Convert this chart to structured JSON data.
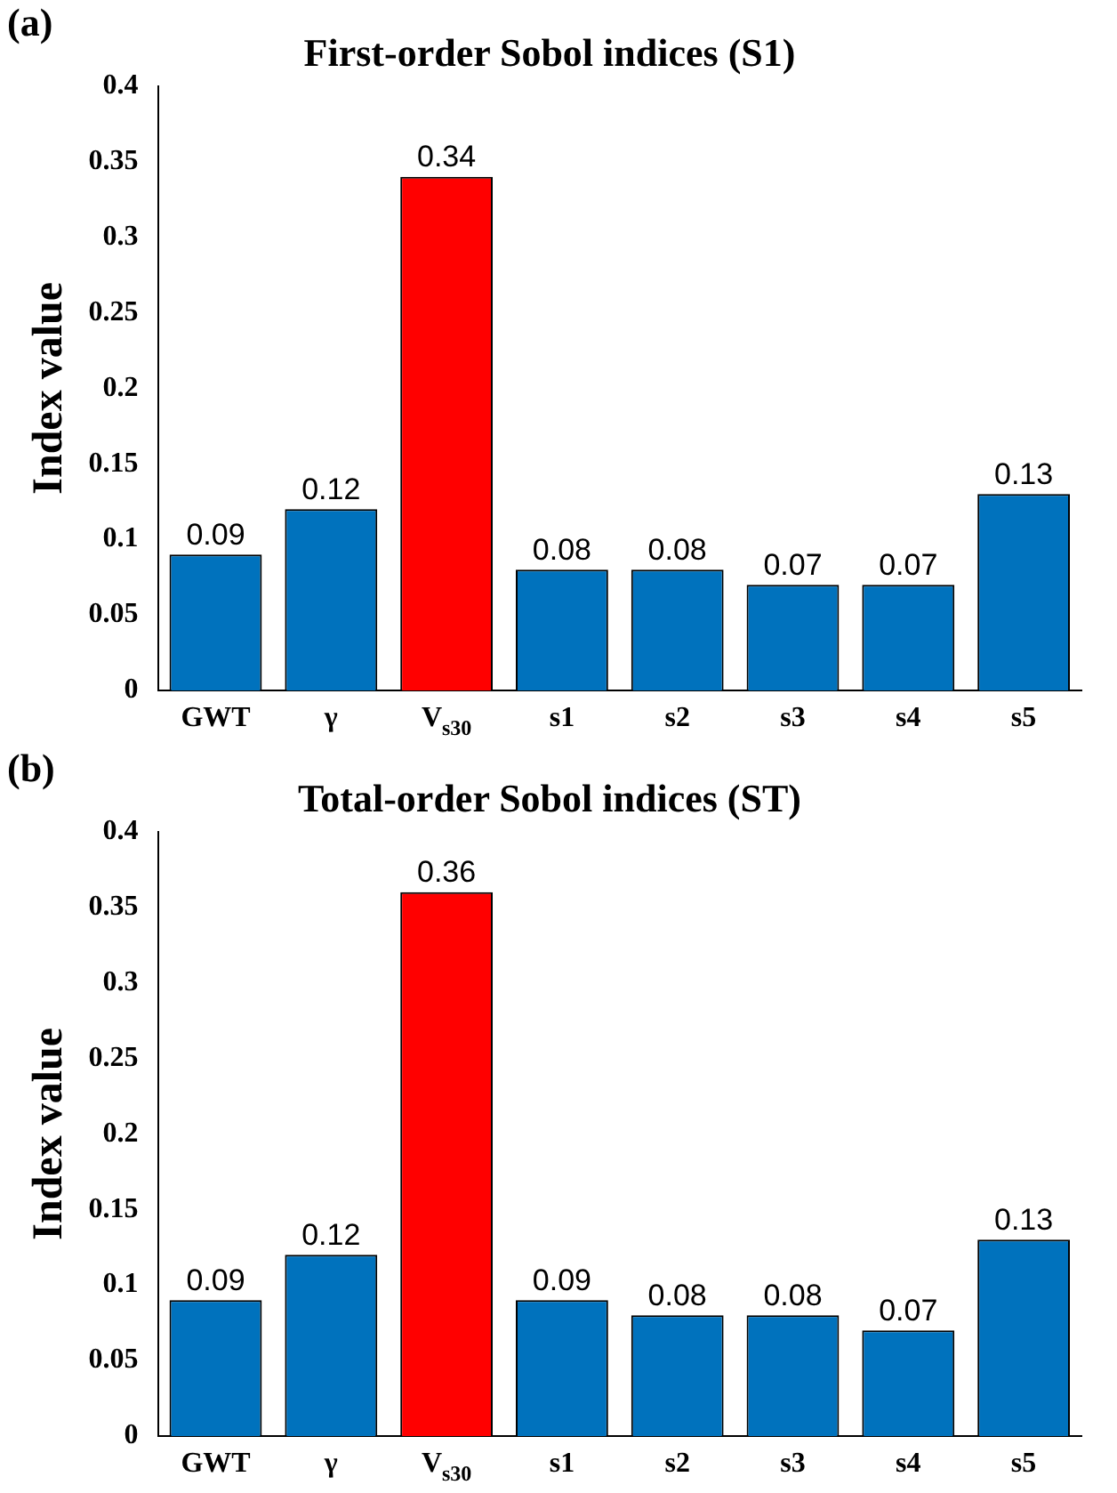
{
  "chart_data": [
    {
      "type": "bar",
      "title": "First-order Sobol indices (S1)",
      "ylabel": "Index value",
      "annotations": [
        "(a)"
      ],
      "categories": [
        "GWT",
        "γ",
        "V$_{s30}$",
        "s1",
        "s2",
        "s3",
        "s4",
        "s5"
      ],
      "values": [
        0.09,
        0.12,
        0.34,
        0.08,
        0.08,
        0.07,
        0.07,
        0.13
      ],
      "colors": [
        "#0072bd",
        "#0072bd",
        "#ff0000",
        "#0072bd",
        "#0072bd",
        "#0072bd",
        "#0072bd",
        "#0072bd"
      ],
      "ylim": [
        0,
        0.4
      ],
      "yticks": [
        0,
        0.05,
        0.1,
        0.15,
        0.2,
        0.25,
        0.3,
        0.35,
        0.4
      ],
      "grid": false,
      "legend": false,
      "data_labels": true
    },
    {
      "type": "bar",
      "title": "Total-order Sobol indices (ST)",
      "ylabel": "Index value",
      "annotations": [
        "(b)"
      ],
      "categories": [
        "GWT",
        "γ",
        "V$_{s30}$",
        "s1",
        "s2",
        "s3",
        "s4",
        "s5"
      ],
      "values": [
        0.09,
        0.12,
        0.36,
        0.09,
        0.08,
        0.08,
        0.07,
        0.13
      ],
      "colors": [
        "#0072bd",
        "#0072bd",
        "#ff0000",
        "#0072bd",
        "#0072bd",
        "#0072bd",
        "#0072bd",
        "#0072bd"
      ],
      "ylim": [
        0,
        0.4
      ],
      "yticks": [
        0,
        0.05,
        0.1,
        0.15,
        0.2,
        0.25,
        0.3,
        0.35,
        0.4
      ],
      "grid": false,
      "legend": false,
      "data_labels": true
    }
  ]
}
